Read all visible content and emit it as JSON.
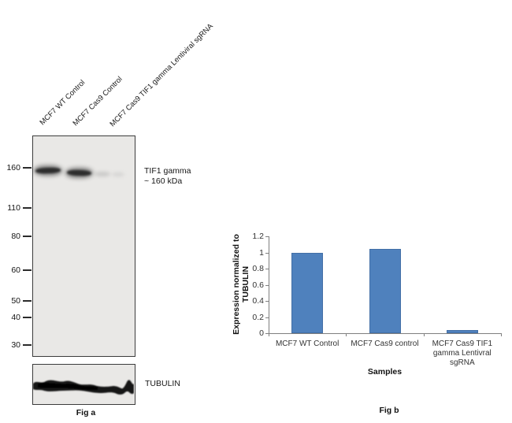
{
  "fig_a": {
    "caption": "Fig a",
    "lane_labels": [
      "MCF7 WT Control",
      "MCF7 Cas9 Control",
      "MCF7 Cas9 TIF1 gamma Lentiviral sgRNA"
    ],
    "mw_markers": [
      "160",
      "110",
      "80",
      "60",
      "50",
      "40",
      "30"
    ],
    "band_annotation_line1": "TIF1 gamma",
    "band_annotation_line2": "~ 160 kDa",
    "loading_control_label": "TUBULIN"
  },
  "fig_b": {
    "caption": "Fig b"
  },
  "chart_data": {
    "type": "bar",
    "categories": [
      "MCF7 WT Control",
      "MCF7 Cas9 control",
      "MCF7 Cas9 TIF1 gamma Lentivral sgRNA"
    ],
    "values": [
      1.0,
      1.04,
      0.04
    ],
    "title": "",
    "xlabel": "Samples",
    "ylabel": "Expression normalized to TUBULIN",
    "ylabel_lines": [
      "Expression normalized to",
      "TUBULIN"
    ],
    "ylim": [
      0,
      1.2
    ],
    "ytick_step": 0.2,
    "bar_color": "#4F81BD",
    "grid": false,
    "legend": false
  }
}
